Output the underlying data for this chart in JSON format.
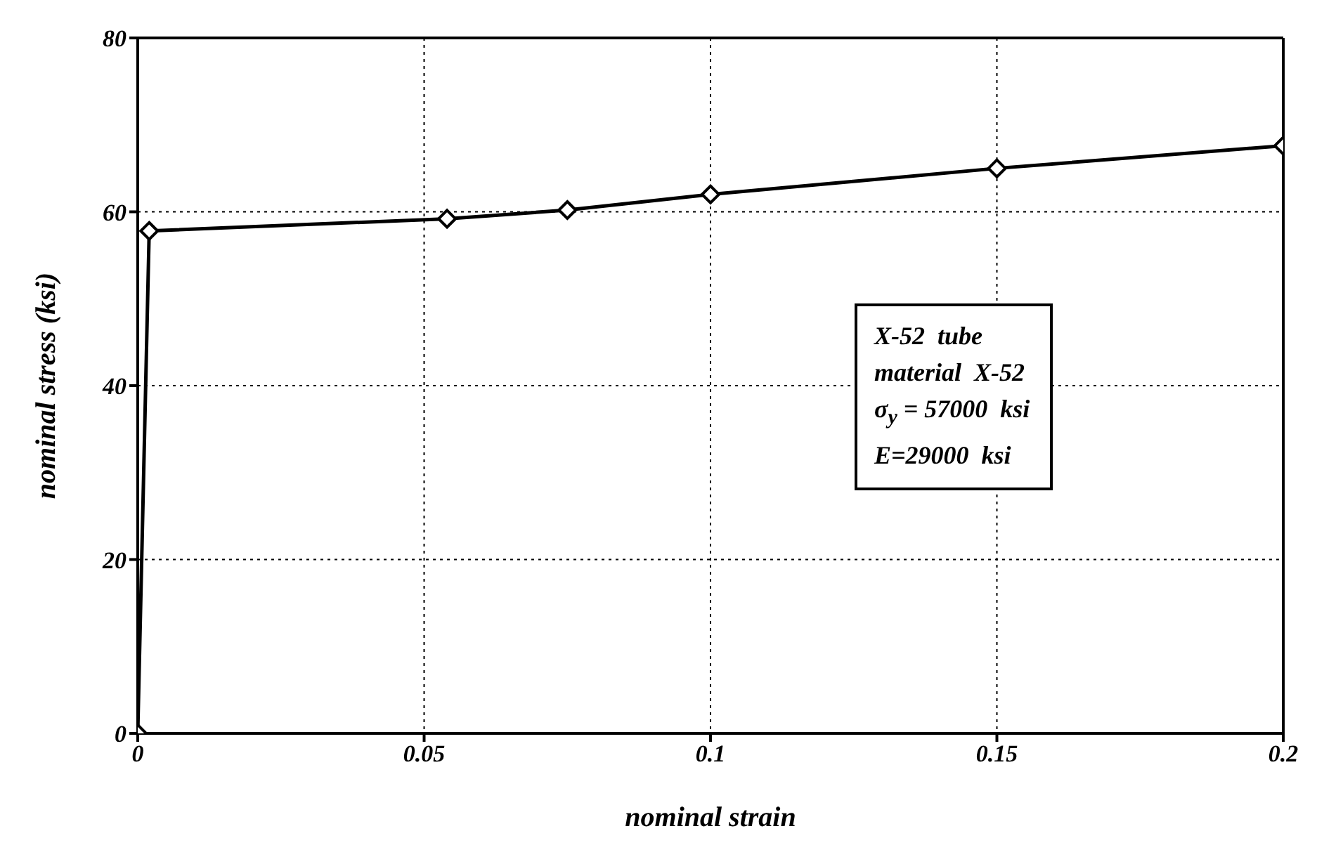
{
  "chart_data": {
    "type": "line",
    "xlabel": "nominal strain",
    "ylabel": "nominal stress (ksi)",
    "x": [
      0,
      0.002,
      0.054,
      0.075,
      0.1,
      0.15,
      0.2
    ],
    "series": [
      {
        "color": "#000000",
        "values": [
          0,
          57.8,
          59.2,
          60.2,
          62.0,
          65.0,
          67.6
        ]
      }
    ],
    "xlim": [
      0,
      0.2
    ],
    "xticks": [
      0,
      0.05,
      0.1,
      0.15,
      0.2
    ],
    "ylim": [
      0,
      80
    ],
    "yticks": [
      0,
      20,
      40,
      60,
      80
    ],
    "grid": true,
    "marker": "diamond",
    "line_style": "solid",
    "annotations": [
      "X-52  tube",
      "material  X-52",
      "σ$_{y}$ = 57000  ksi",
      "E=29000  ksi"
    ]
  }
}
